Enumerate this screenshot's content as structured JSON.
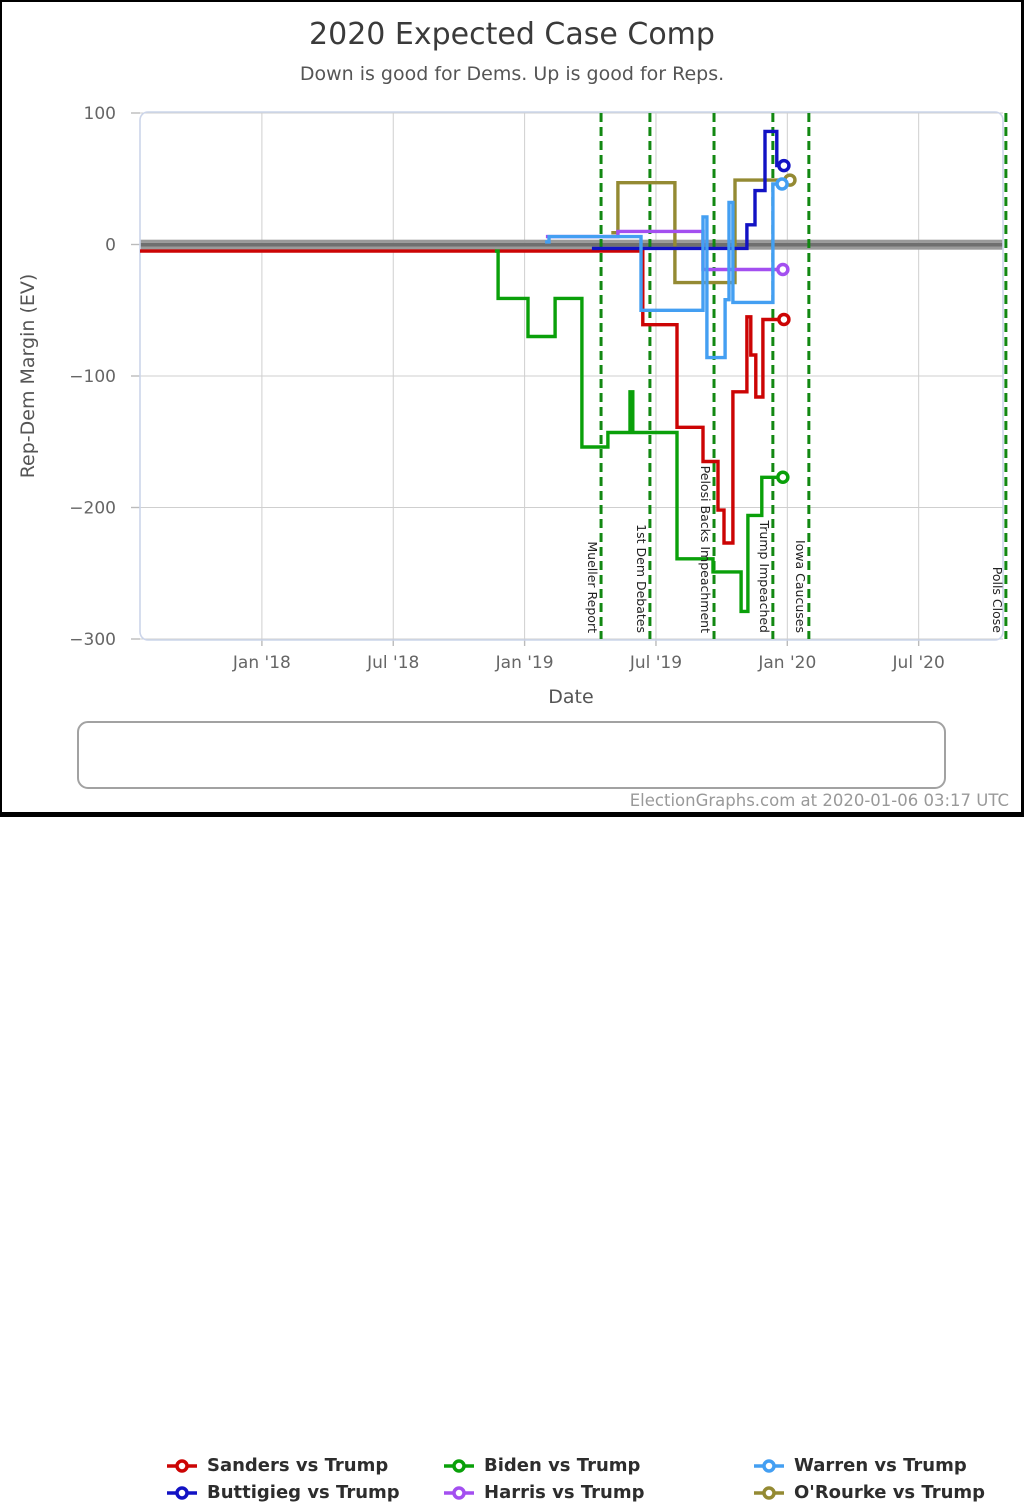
{
  "footer": {
    "credit": "ElectionGraphs.com at 2020-01-06 03:17 UTC"
  },
  "legend": {
    "items": [
      {
        "label": "Sanders vs Trump",
        "color": "#cc0404"
      },
      {
        "label": "Biden vs Trump",
        "color": "#0aa00a"
      },
      {
        "label": "Warren vs Trump",
        "color": "#449ff2"
      },
      {
        "label": "Buttigieg vs Trump",
        "color": "#1212c4"
      },
      {
        "label": "Harris vs Trump",
        "color": "#a34ff0"
      },
      {
        "label": "O'Rourke vs Trump",
        "color": "#948a33"
      }
    ]
  },
  "chart_data": {
    "type": "line",
    "step": true,
    "title": "2020 Expected Case Comp",
    "subtitle": "Down is good for Dems. Up is good for Reps.",
    "xlabel": "Date",
    "ylabel": "Rep-Dem Margin (EV)",
    "xlim": [
      2017.536,
      2020.821
    ],
    "ylim": [
      -300,
      100
    ],
    "grid": true,
    "x_ticks": [
      {
        "t": 2018.0,
        "label": "Jan '18"
      },
      {
        "t": 2018.5,
        "label": "Jul '18"
      },
      {
        "t": 2019.0,
        "label": "Jan '19"
      },
      {
        "t": 2019.5,
        "label": "Jul '19"
      },
      {
        "t": 2020.0,
        "label": "Jan '20"
      },
      {
        "t": 2020.5,
        "label": "Jul '20"
      }
    ],
    "y_ticks": [
      {
        "v": 100,
        "label": "100"
      },
      {
        "v": 0,
        "label": "0"
      },
      {
        "v": -100,
        "label": "−100"
      },
      {
        "v": -200,
        "label": "−200"
      },
      {
        "v": -300,
        "label": "−300"
      }
    ],
    "zero_line": {
      "value": 0,
      "color_core": "#6f6f6f",
      "color_edge": "#9a9a9a"
    },
    "event_line_color": "#128812",
    "events": [
      {
        "label": "Mueller Report",
        "t": 2019.291
      },
      {
        "label": "1st Dem Debates",
        "t": 2019.477
      },
      {
        "label": "Pelosi Backs Impeachment",
        "t": 2019.721
      },
      {
        "label": "Trump Impeached",
        "t": 2019.945
      },
      {
        "label": "Iowa Caucuses",
        "t": 2020.082
      },
      {
        "label": "Polls Close",
        "t": 2020.832
      }
    ],
    "series": [
      {
        "name": "Sanders vs Trump",
        "color": "#cc0404",
        "end_t": 2019.987,
        "points": [
          [
            2017.536,
            -5
          ],
          [
            2019.45,
            -61
          ],
          [
            2019.58,
            -139
          ],
          [
            2019.679,
            -165
          ],
          [
            2019.736,
            -202
          ],
          [
            2019.759,
            -227
          ],
          [
            2019.793,
            -112
          ],
          [
            2019.846,
            -55
          ],
          [
            2019.861,
            -84
          ],
          [
            2019.88,
            -116
          ],
          [
            2019.907,
            -57
          ]
        ]
      },
      {
        "name": "Biden vs Trump",
        "color": "#0aa00a",
        "end_t": 2019.983,
        "points": [
          [
            2018.887,
            -5
          ],
          [
            2018.899,
            -41
          ],
          [
            2019.013,
            -70
          ],
          [
            2019.116,
            -41
          ],
          [
            2019.218,
            -154
          ],
          [
            2019.317,
            -143
          ],
          [
            2019.401,
            -112
          ],
          [
            2019.412,
            -143
          ],
          [
            2019.58,
            -239
          ],
          [
            2019.717,
            -249
          ],
          [
            2019.824,
            -279
          ],
          [
            2019.85,
            -206
          ],
          [
            2019.903,
            -177
          ]
        ]
      },
      {
        "name": "O'Rourke vs Trump",
        "color": "#948a33",
        "end_t": 2020.01,
        "points": [
          [
            2019.33,
            9
          ],
          [
            2019.355,
            47
          ],
          [
            2019.572,
            -29
          ],
          [
            2019.801,
            49
          ]
        ]
      },
      {
        "name": "Harris vs Trump",
        "color": "#a34ff0",
        "end_t": 2019.983,
        "points": [
          [
            2019.081,
            6
          ],
          [
            2019.355,
            10
          ],
          [
            2019.679,
            -19
          ]
        ]
      },
      {
        "name": "Buttigieg vs Trump",
        "color": "#1212c4",
        "end_t": 2019.987,
        "points": [
          [
            2019.256,
            -3
          ],
          [
            2019.846,
            15
          ],
          [
            2019.877,
            41
          ],
          [
            2019.915,
            86
          ],
          [
            2019.96,
            60
          ]
        ]
      },
      {
        "name": "Warren vs Trump",
        "color": "#449ff2",
        "end_t": 2019.98,
        "points": [
          [
            2019.078,
            2
          ],
          [
            2019.093,
            6
          ],
          [
            2019.443,
            -50
          ],
          [
            2019.679,
            21
          ],
          [
            2019.694,
            -86
          ],
          [
            2019.763,
            -42
          ],
          [
            2019.778,
            32
          ],
          [
            2019.793,
            -44
          ],
          [
            2019.945,
            46
          ]
        ]
      }
    ]
  }
}
